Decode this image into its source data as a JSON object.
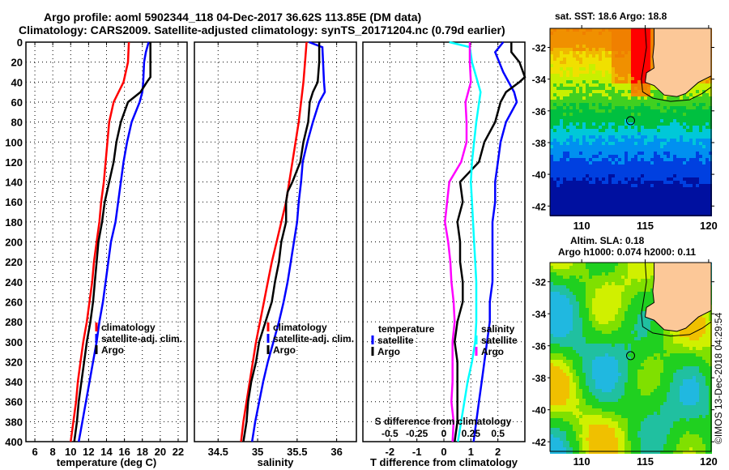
{
  "header": {
    "title_line1": "Argo profile: aoml 5902344_118 04-Dec-2017 36.62S 113.85E (DM data)",
    "title_line2": "Climatology: CARS2009. Satellite-adjusted climatology: synTS_20171204.nc (0.79d earlier)"
  },
  "chart_data": [
    {
      "type": "line",
      "id": "temperature-panel",
      "xlabel": "temperature (deg C)",
      "ylabel": "",
      "xlim": [
        5,
        23
      ],
      "ylim": [
        400,
        0
      ],
      "xticks": [
        6,
        8,
        10,
        12,
        14,
        16,
        18,
        20,
        22
      ],
      "yticks": [
        0,
        20,
        40,
        60,
        80,
        100,
        120,
        140,
        160,
        180,
        200,
        220,
        240,
        260,
        280,
        300,
        320,
        340,
        360,
        380,
        400
      ],
      "grid": true,
      "legend": {
        "placement": "lower-right",
        "entries": [
          "climatology",
          "satellite-adj. clim.",
          "Argo"
        ]
      },
      "series": [
        {
          "name": "climatology",
          "color": "#ff0000",
          "depth": [
            0,
            20,
            40,
            60,
            80,
            100,
            120,
            140,
            160,
            180,
            200,
            220,
            240,
            260,
            280,
            300,
            320,
            340,
            360,
            380,
            400
          ],
          "values": [
            16.5,
            16.4,
            15.9,
            14.8,
            14.3,
            14.1,
            13.9,
            13.7,
            13.4,
            13.2,
            12.9,
            12.6,
            12.4,
            12.1,
            11.8,
            11.4,
            11.1,
            10.8,
            10.6,
            10.3,
            10.0
          ]
        },
        {
          "name": "satellite-adj. clim.",
          "color": "#0000ff",
          "depth": [
            0,
            10,
            20,
            40,
            50,
            60,
            80,
            100,
            120,
            140,
            160,
            180,
            200,
            220,
            240,
            260,
            280,
            300,
            320,
            340,
            360,
            380,
            400
          ],
          "values": [
            18.7,
            18.4,
            18.2,
            18.1,
            18.0,
            17.7,
            16.8,
            16.3,
            15.9,
            15.6,
            15.3,
            15.0,
            14.5,
            14.2,
            13.9,
            13.6,
            13.2,
            12.9,
            12.5,
            12.1,
            11.7,
            11.3,
            10.9
          ]
        },
        {
          "name": "Argo",
          "color": "#000000",
          "depth": [
            0,
            10,
            20,
            35,
            40,
            50,
            60,
            80,
            100,
            120,
            140,
            160,
            180,
            200,
            220,
            240,
            260,
            280,
            300,
            320,
            340,
            360,
            380,
            400
          ],
          "values": [
            18.9,
            18.9,
            18.9,
            18.9,
            18.5,
            17.8,
            16.4,
            15.6,
            15.1,
            14.8,
            14.3,
            13.8,
            13.5,
            13.1,
            12.9,
            12.7,
            12.5,
            12.2,
            11.8,
            11.5,
            11.2,
            10.9,
            10.7,
            10.4
          ]
        }
      ]
    },
    {
      "type": "line",
      "id": "salinity-panel",
      "xlabel": "salinity",
      "xlim": [
        34.2,
        36.25
      ],
      "ylim": [
        400,
        0
      ],
      "xticks": [
        34.5,
        35,
        35.5,
        36
      ],
      "grid": true,
      "legend": {
        "placement": "lower-right",
        "entries": [
          "climatology",
          "satellite-adj. clim.",
          "Argo"
        ]
      },
      "series": [
        {
          "name": "climatology",
          "color": "#ff0000",
          "depth": [
            0,
            20,
            40,
            60,
            80,
            100,
            120,
            140,
            160,
            180,
            200,
            220,
            240,
            260,
            280,
            300,
            320,
            340,
            360,
            380,
            400
          ],
          "values": [
            35.62,
            35.6,
            35.58,
            35.55,
            35.52,
            35.48,
            35.44,
            35.4,
            35.36,
            35.3,
            35.24,
            35.18,
            35.13,
            35.08,
            35.03,
            34.98,
            34.94,
            34.9,
            34.86,
            34.82,
            34.79
          ]
        },
        {
          "name": "satellite-adj. clim.",
          "color": "#0000ff",
          "depth": [
            0,
            5,
            40,
            50,
            60,
            80,
            100,
            120,
            140,
            160,
            180,
            200,
            220,
            240,
            260,
            280,
            300,
            320,
            340,
            360,
            380,
            400
          ],
          "values": [
            35.65,
            35.82,
            35.84,
            35.85,
            35.78,
            35.7,
            35.63,
            35.57,
            35.55,
            35.52,
            35.5,
            35.46,
            35.42,
            35.38,
            35.33,
            35.27,
            35.2,
            35.13,
            35.07,
            35.02,
            34.97,
            34.93
          ]
        },
        {
          "name": "Argo",
          "color": "#000000",
          "depth": [
            0,
            20,
            40,
            50,
            60,
            80,
            100,
            120,
            140,
            150,
            160,
            180,
            200,
            220,
            240,
            260,
            280,
            300,
            320,
            340,
            360,
            380,
            400
          ],
          "values": [
            35.78,
            35.78,
            35.76,
            35.7,
            35.66,
            35.64,
            35.58,
            35.54,
            35.44,
            35.38,
            35.36,
            35.36,
            35.3,
            35.27,
            35.22,
            35.18,
            35.1,
            35.02,
            34.98,
            34.92,
            34.88,
            34.86,
            34.82
          ]
        }
      ]
    },
    {
      "type": "line",
      "id": "difference-panel",
      "xlabel": "T difference from climatology",
      "xlabel_secondary": "S difference from climatology",
      "xlim": [
        -3,
        3
      ],
      "ylim": [
        400,
        0
      ],
      "xticks": [
        -2,
        -1,
        0,
        1,
        2
      ],
      "xticks_secondary": [
        -0.5,
        -0.25,
        0,
        0.25,
        0.5
      ],
      "grid": true,
      "legend": {
        "placement": "lower-center",
        "temperature_heading": "temperature",
        "salinity_heading": "salinity",
        "entries": [
          {
            "group": "temperature",
            "label": "satellite",
            "color": "#0000ff"
          },
          {
            "group": "temperature",
            "label": "Argo",
            "color": "#000000"
          },
          {
            "group": "salinity",
            "label": "satellite",
            "color": "#00ffff"
          },
          {
            "group": "salinity",
            "label": "Argo",
            "color": "#ff00ff"
          }
        ]
      },
      "series": [
        {
          "name": "T satellite",
          "color": "#0000ff",
          "depth": [
            0,
            10,
            30,
            50,
            60,
            80,
            100,
            120,
            140,
            160,
            180,
            200,
            220,
            240,
            260,
            280,
            300,
            320,
            340,
            360,
            380,
            400
          ],
          "values": [
            2.2,
            1.9,
            2.2,
            2.6,
            2.7,
            2.3,
            2.1,
            2.0,
            1.9,
            1.9,
            1.8,
            1.8,
            1.8,
            1.8,
            1.7,
            1.7,
            1.6,
            1.5,
            1.4,
            1.3,
            1.2,
            1.1
          ]
        },
        {
          "name": "T Argo",
          "color": "#000000",
          "depth": [
            0,
            10,
            20,
            35,
            40,
            50,
            60,
            80,
            100,
            120,
            140,
            160,
            180,
            200,
            220,
            240,
            260,
            280,
            300,
            320,
            340,
            360,
            380,
            400
          ],
          "values": [
            2.5,
            2.5,
            2.8,
            3.0,
            2.8,
            2.3,
            2.1,
            1.9,
            1.5,
            1.3,
            0.6,
            0.7,
            0.5,
            0.6,
            0.6,
            0.7,
            0.7,
            0.5,
            0.4,
            0.5,
            0.5,
            0.5,
            0.5,
            0.4
          ]
        },
        {
          "name": "S satellite",
          "color": "#00ffff",
          "depth": [
            0,
            5,
            20,
            50,
            80,
            100,
            120,
            140,
            160,
            180,
            200,
            220,
            240,
            260,
            280,
            300,
            320,
            340,
            360,
            380,
            400
          ],
          "values": [
            0.05,
            0.24,
            0.26,
            0.34,
            0.3,
            0.28,
            0.26,
            0.25,
            0.26,
            0.27,
            0.28,
            0.29,
            0.3,
            0.3,
            0.3,
            0.29,
            0.26,
            0.22,
            0.19,
            0.16,
            0.13
          ]
        },
        {
          "name": "S Argo",
          "color": "#ff00ff",
          "depth": [
            0,
            20,
            40,
            60,
            80,
            100,
            120,
            140,
            160,
            180,
            200,
            220,
            240,
            260,
            280,
            300,
            320,
            340,
            360,
            380,
            400
          ],
          "values": [
            0.24,
            0.24,
            0.25,
            0.2,
            0.21,
            0.21,
            0.16,
            0.05,
            0.03,
            0.01,
            0.04,
            0.06,
            0.07,
            0.09,
            0.1,
            0.08,
            0.08,
            0.08,
            0.07,
            0.09,
            0.08
          ]
        }
      ]
    },
    {
      "type": "heatmap",
      "id": "sst-map",
      "title": "sat. SST: 18.6 Argo: 18.8",
      "xlim": [
        107.5,
        120.2
      ],
      "ylim": [
        -42.6,
        -30.8
      ],
      "xticks": [
        110,
        115,
        120
      ],
      "yticks": [
        -32,
        -34,
        -36,
        -38,
        -40,
        -42
      ],
      "profile_location": {
        "lon": 113.85,
        "lat": -36.62
      }
    },
    {
      "type": "heatmap",
      "id": "sla-map",
      "title_line1": "Altim. SLA: 0.18",
      "title_line2": "Argo h1000: 0.074 h2000: 0.11",
      "xlim": [
        107.5,
        120.2
      ],
      "ylim": [
        -42.6,
        -30.8
      ],
      "xticks": [
        110,
        115,
        120
      ],
      "yticks": [
        -32,
        -34,
        -36,
        -38,
        -40,
        -42
      ],
      "profile_location": {
        "lon": 113.85,
        "lat": -36.62
      }
    }
  ],
  "footer": {
    "copyright": "©IMOS 13-Dec-2018 04:29:54"
  },
  "colors": {
    "land": "#fcc898"
  }
}
